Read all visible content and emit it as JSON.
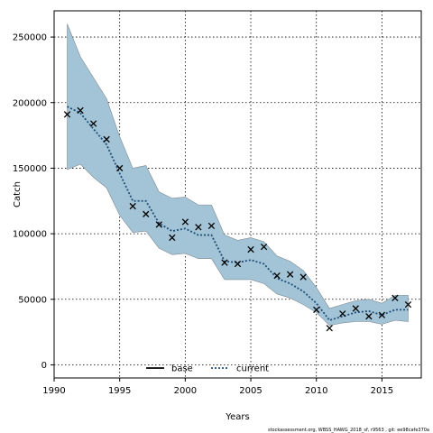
{
  "chart_data": {
    "type": "line",
    "xlabel": "Years",
    "ylabel": "Catch",
    "xlim": [
      1990,
      2018
    ],
    "ylim": [
      -10000,
      270000
    ],
    "grid": true,
    "legend_position": "bottom-center",
    "x_ticks": [
      1990,
      1995,
      2000,
      2005,
      2010,
      2015
    ],
    "y_ticks": [
      0,
      50000,
      100000,
      150000,
      200000,
      250000
    ],
    "x_tick_labels": [
      "1990",
      "1995",
      "2000",
      "2005",
      "2010",
      "2015"
    ],
    "y_tick_labels": [
      "0",
      "50000",
      "100000",
      "150000",
      "200000",
      "250000"
    ],
    "band": {
      "color": "#a3c4d6",
      "x": [
        1991,
        1992,
        1993,
        1994,
        1995,
        1996,
        1997,
        1998,
        1999,
        2000,
        2001,
        2002,
        2003,
        2004,
        2005,
        2006,
        2007,
        2008,
        2009,
        2010,
        2011,
        2012,
        2013,
        2014,
        2015,
        2016,
        2017
      ],
      "upper": [
        260000,
        235000,
        219000,
        203000,
        174000,
        150000,
        152000,
        132000,
        127000,
        128000,
        122000,
        122000,
        99000,
        95000,
        97000,
        94000,
        83000,
        79000,
        72000,
        59000,
        43000,
        46000,
        49000,
        50000,
        47000,
        53000,
        53000
      ],
      "lower": [
        149000,
        153000,
        143000,
        135000,
        114000,
        101000,
        102000,
        89000,
        84000,
        85000,
        81000,
        81000,
        65000,
        65000,
        65000,
        62000,
        54000,
        51000,
        46000,
        40000,
        30000,
        32000,
        33000,
        33000,
        31000,
        34000,
        33000
      ]
    },
    "series": [
      {
        "name": "current",
        "style": "dotted",
        "color": "#1f4e79",
        "x": [
          1991,
          1992,
          1993,
          1994,
          1995,
          1996,
          1997,
          1998,
          1999,
          2000,
          2001,
          2002,
          2003,
          2004,
          2005,
          2006,
          2007,
          2008,
          2009,
          2010,
          2011,
          2012,
          2013,
          2014,
          2015,
          2016,
          2017
        ],
        "values": [
          197000,
          192000,
          180000,
          168000,
          146000,
          125000,
          125000,
          108000,
          102000,
          104000,
          99000,
          99000,
          79000,
          78000,
          80000,
          77000,
          66000,
          62000,
          56000,
          47000,
          34000,
          37000,
          40000,
          41000,
          38000,
          42000,
          42000
        ]
      },
      {
        "name": "base",
        "style": "solid",
        "color": "#000000",
        "x": [],
        "values": []
      }
    ],
    "observations": {
      "marker": "x",
      "color": "#000000",
      "x": [
        1991,
        1992,
        1993,
        1994,
        1995,
        1996,
        1997,
        1998,
        1999,
        2000,
        2001,
        2002,
        2003,
        2004,
        2005,
        2006,
        2007,
        2008,
        2009,
        2010,
        2011,
        2012,
        2013,
        2014,
        2015,
        2016,
        2017
      ],
      "values": [
        191000,
        194000,
        184000,
        172000,
        150000,
        121000,
        115000,
        107000,
        97000,
        109000,
        105000,
        106000,
        78000,
        77000,
        88000,
        90000,
        68000,
        69000,
        67000,
        42000,
        28000,
        39000,
        43000,
        37000,
        38000,
        51000,
        46000
      ]
    },
    "legend": [
      {
        "label": "base",
        "style": "solid",
        "color": "#000000"
      },
      {
        "label": "current",
        "style": "dotted",
        "color": "#1f4e79"
      }
    ]
  },
  "caption": "stockassessment.org, WBSS_HAWG_2018_sf, r9563 , git: ee98cafe370a"
}
